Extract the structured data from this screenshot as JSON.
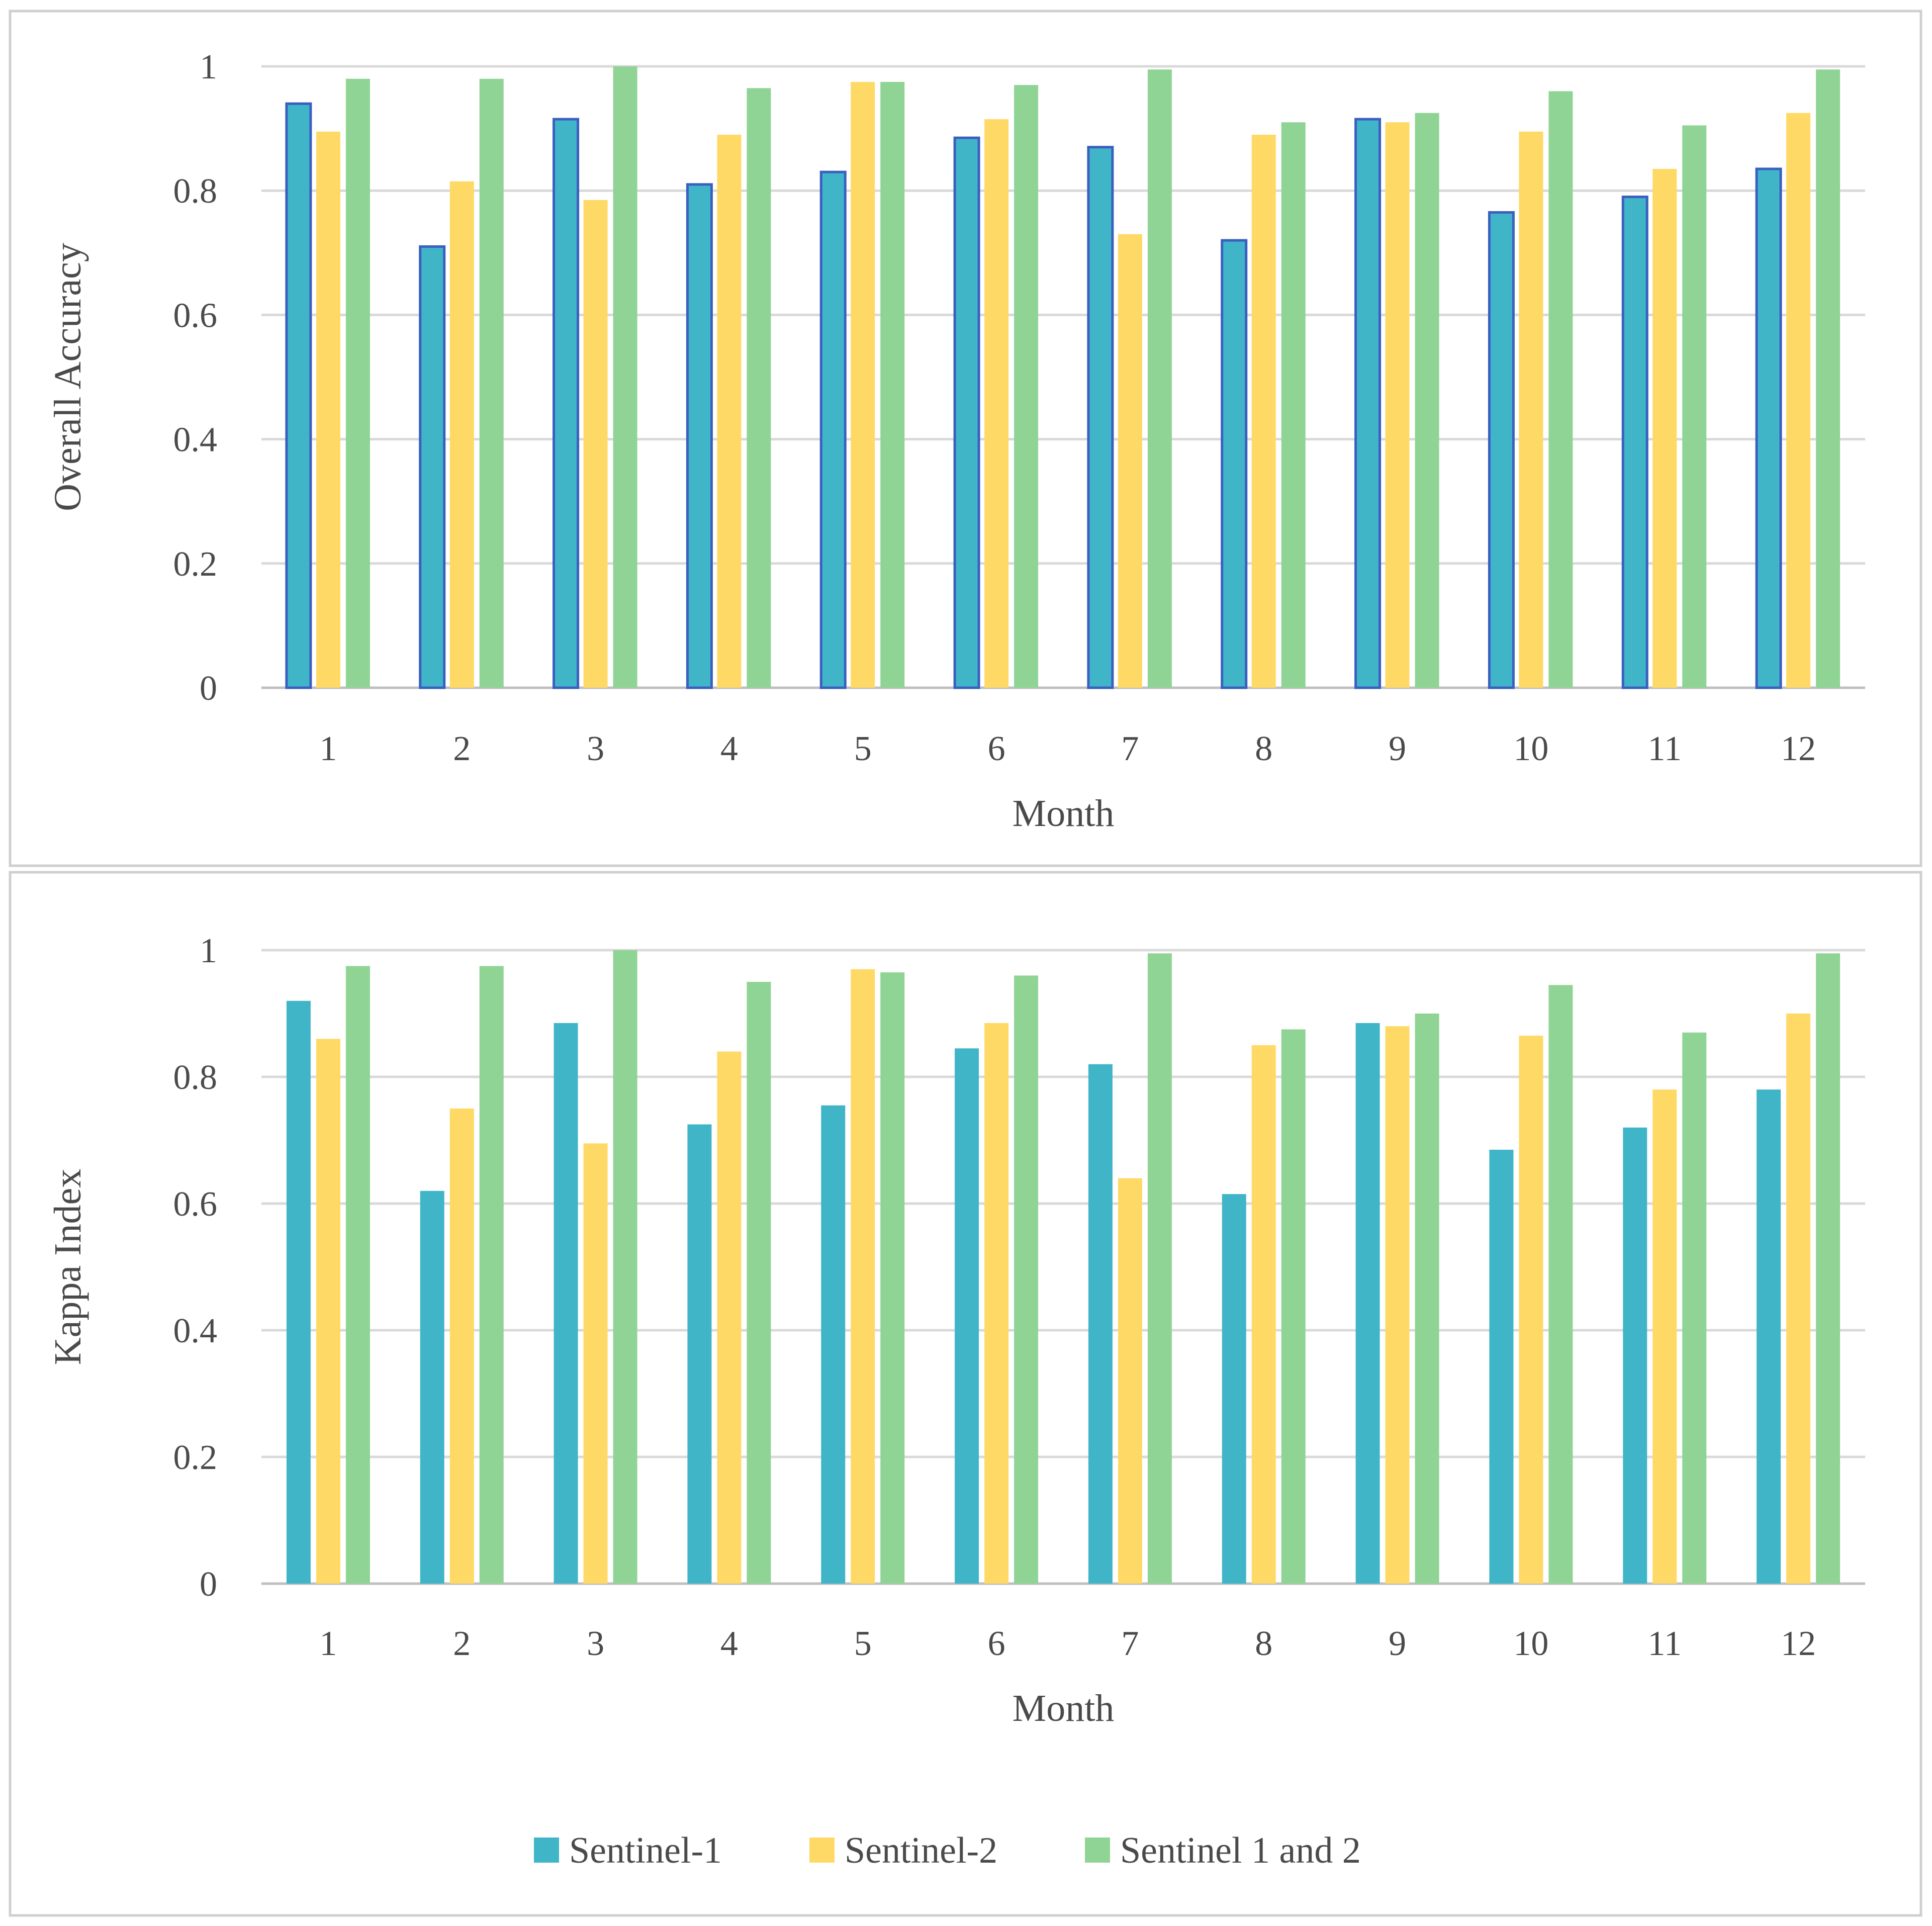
{
  "colors": {
    "sentinel1": "#40B5C8",
    "sentinel1_outline": "#3A5FC0",
    "sentinel2": "#FFD966",
    "sentinel12": "#8FD494",
    "grid": "#d9d9d9",
    "frame": "#cfcfcf"
  },
  "legend": [
    "Sentinel-1",
    "Sentinel-2",
    "Sentinel 1 and 2"
  ],
  "chart_data": [
    {
      "type": "bar",
      "title": "",
      "xlabel": "Month",
      "ylabel": "Overall Accuracy",
      "categories": [
        "1",
        "2",
        "3",
        "4",
        "5",
        "6",
        "7",
        "8",
        "9",
        "10",
        "11",
        "12"
      ],
      "ylim": [
        0,
        1
      ],
      "yticks": [
        "0",
        "0.2",
        "0.4",
        "0.6",
        "0.8",
        "1"
      ],
      "grid": true,
      "series": [
        {
          "name": "Sentinel-1",
          "values": [
            0.94,
            0.71,
            0.915,
            0.81,
            0.83,
            0.885,
            0.87,
            0.72,
            0.915,
            0.765,
            0.79,
            0.835
          ]
        },
        {
          "name": "Sentinel-2",
          "values": [
            0.895,
            0.815,
            0.785,
            0.89,
            0.975,
            0.915,
            0.73,
            0.89,
            0.91,
            0.895,
            0.835,
            0.925
          ]
        },
        {
          "name": "Sentinel 1 and 2",
          "values": [
            0.98,
            0.98,
            1.0,
            0.965,
            0.975,
            0.97,
            0.995,
            0.91,
            0.925,
            0.96,
            0.905,
            0.995
          ]
        }
      ]
    },
    {
      "type": "bar",
      "title": "",
      "xlabel": "Month",
      "ylabel": "Kappa Index",
      "categories": [
        "1",
        "2",
        "3",
        "4",
        "5",
        "6",
        "7",
        "8",
        "9",
        "10",
        "11",
        "12"
      ],
      "ylim": [
        0,
        1
      ],
      "yticks": [
        "0",
        "0.2",
        "0.4",
        "0.6",
        "0.8",
        "1"
      ],
      "grid": true,
      "legend_position": "bottom",
      "series": [
        {
          "name": "Sentinel-1",
          "values": [
            0.92,
            0.62,
            0.885,
            0.725,
            0.755,
            0.845,
            0.82,
            0.615,
            0.885,
            0.685,
            0.72,
            0.78
          ]
        },
        {
          "name": "Sentinel-2",
          "values": [
            0.86,
            0.75,
            0.695,
            0.84,
            0.97,
            0.885,
            0.64,
            0.85,
            0.88,
            0.865,
            0.78,
            0.9
          ]
        },
        {
          "name": "Sentinel 1 and 2",
          "values": [
            0.975,
            0.975,
            1.0,
            0.95,
            0.965,
            0.96,
            0.995,
            0.875,
            0.9,
            0.945,
            0.87,
            0.995
          ]
        }
      ]
    }
  ]
}
